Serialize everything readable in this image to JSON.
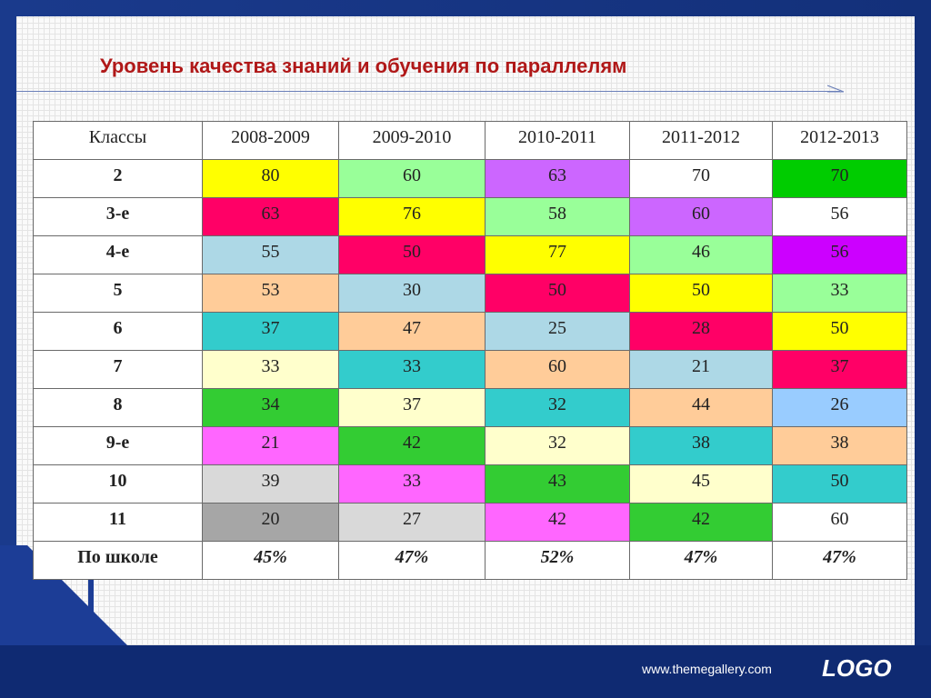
{
  "title": "Уровень качества знаний и обучения по параллелям",
  "table": {
    "headers": [
      "Классы",
      "2008-2009",
      "2009-2010",
      "2010-2011",
      "2011-2012",
      "2012-2013"
    ],
    "rows": [
      {
        "label": "2",
        "cells": [
          {
            "v": "80",
            "c": "#ffff00"
          },
          {
            "v": "60",
            "c": "#99ff99"
          },
          {
            "v": "63",
            "c": "#cc66ff"
          },
          {
            "v": "70",
            "c": "#ffffff"
          },
          {
            "v": "70",
            "c": "#00cc00"
          }
        ]
      },
      {
        "label": "3-е",
        "cells": [
          {
            "v": "63",
            "c": "#ff0066"
          },
          {
            "v": "76",
            "c": "#ffff00"
          },
          {
            "v": "58",
            "c": "#99ff99"
          },
          {
            "v": "60",
            "c": "#cc66ff"
          },
          {
            "v": "56",
            "c": "#ffffff"
          }
        ]
      },
      {
        "label": "4-е",
        "cells": [
          {
            "v": "55",
            "c": "#add8e6"
          },
          {
            "v": "50",
            "c": "#ff0066"
          },
          {
            "v": "77",
            "c": "#ffff00"
          },
          {
            "v": "46",
            "c": "#99ff99"
          },
          {
            "v": "56",
            "c": "#cc00ff"
          }
        ]
      },
      {
        "label": "5",
        "cells": [
          {
            "v": "53",
            "c": "#ffcc99"
          },
          {
            "v": "30",
            "c": "#add8e6"
          },
          {
            "v": "50",
            "c": "#ff0066"
          },
          {
            "v": "50",
            "c": "#ffff00"
          },
          {
            "v": "33",
            "c": "#99ff99"
          }
        ]
      },
      {
        "label": "6",
        "cells": [
          {
            "v": "37",
            "c": "#33cccc"
          },
          {
            "v": "47",
            "c": "#ffcc99"
          },
          {
            "v": "25",
            "c": "#add8e6"
          },
          {
            "v": "28",
            "c": "#ff0066"
          },
          {
            "v": "50",
            "c": "#ffff00"
          }
        ]
      },
      {
        "label": "7",
        "cells": [
          {
            "v": "33",
            "c": "#ffffcc"
          },
          {
            "v": "33",
            "c": "#33cccc"
          },
          {
            "v": "60",
            "c": "#ffcc99"
          },
          {
            "v": "21",
            "c": "#add8e6"
          },
          {
            "v": "37",
            "c": "#ff0066"
          }
        ]
      },
      {
        "label": "8",
        "cells": [
          {
            "v": "34",
            "c": "#33cc33"
          },
          {
            "v": "37",
            "c": "#ffffcc"
          },
          {
            "v": "32",
            "c": "#33cccc"
          },
          {
            "v": "44",
            "c": "#ffcc99"
          },
          {
            "v": "26",
            "c": "#99ccff"
          }
        ]
      },
      {
        "label": "9-е",
        "cells": [
          {
            "v": "21",
            "c": "#ff66ff"
          },
          {
            "v": "42",
            "c": "#33cc33"
          },
          {
            "v": "32",
            "c": "#ffffcc"
          },
          {
            "v": "38",
            "c": "#33cccc"
          },
          {
            "v": "38",
            "c": "#ffcc99"
          }
        ]
      },
      {
        "label": "10",
        "cells": [
          {
            "v": "39",
            "c": "#d9d9d9"
          },
          {
            "v": "33",
            "c": "#ff66ff"
          },
          {
            "v": "43",
            "c": "#33cc33"
          },
          {
            "v": "45",
            "c": "#ffffcc"
          },
          {
            "v": "50",
            "c": "#33cccc"
          }
        ]
      },
      {
        "label": "11",
        "cells": [
          {
            "v": "20",
            "c": "#a6a6a6"
          },
          {
            "v": "27",
            "c": "#d9d9d9"
          },
          {
            "v": "42",
            "c": "#ff66ff"
          },
          {
            "v": "42",
            "c": "#33cc33"
          },
          {
            "v": "60",
            "c": "#ffffff"
          }
        ]
      }
    ],
    "footer": {
      "label": "По школе",
      "cells": [
        "45%",
        "47%",
        "52%",
        "47%",
        "47%"
      ]
    }
  },
  "footer": {
    "url": "www.themegallery.com",
    "logo": "LOGO"
  }
}
